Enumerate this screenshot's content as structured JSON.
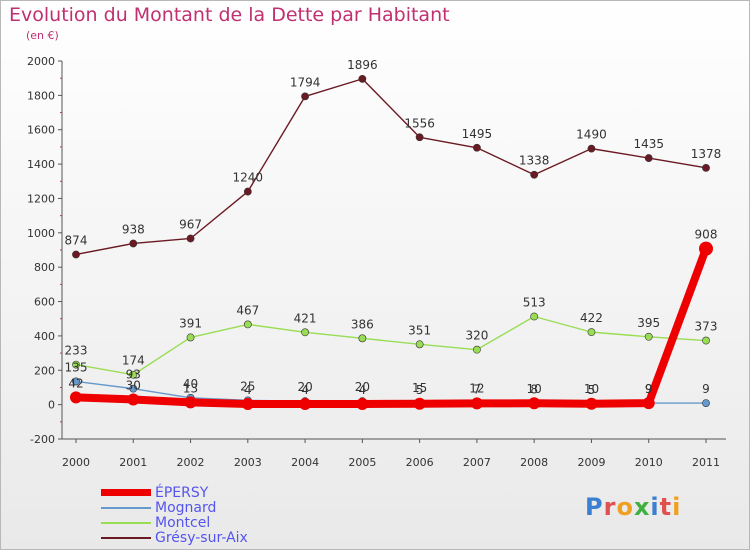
{
  "header": {
    "title": "Evolution du Montant de la Dette par Habitant",
    "subtitle": "(en €)"
  },
  "logo": {
    "text": "Proxiti",
    "colors": [
      "#3a7fd0",
      "#e05050",
      "#f0a020",
      "#40b040",
      "#3a7fd0",
      "#e05050",
      "#f0a020"
    ]
  },
  "chart_data": {
    "type": "line",
    "title": "Evolution du Montant de la Dette par Habitant",
    "ylabel": "(en €)",
    "xlabel": "",
    "x": [
      "2000",
      "2001",
      "2002",
      "2003",
      "2004",
      "2005",
      "2006",
      "2007",
      "2008",
      "2009",
      "2010",
      "2011"
    ],
    "ylim": [
      -200,
      2000
    ],
    "yticks": [
      -200,
      0,
      200,
      400,
      600,
      800,
      1000,
      1200,
      1400,
      1600,
      1800,
      2000
    ],
    "grid": false,
    "legend_position": "bottom-left",
    "series": [
      {
        "name": "Grésy-sur-Aix",
        "color": "#6b1a24",
        "values": [
          874,
          938,
          967,
          1240,
          1794,
          1896,
          1556,
          1495,
          1338,
          1490,
          1435,
          1378
        ]
      },
      {
        "name": "Montcel",
        "color": "#99dd55",
        "values": [
          233,
          174,
          391,
          467,
          421,
          386,
          351,
          320,
          513,
          422,
          395,
          373
        ]
      },
      {
        "name": "Mognard",
        "color": "#6699cc",
        "values": [
          135,
          93,
          40,
          25,
          20,
          20,
          15,
          12,
          10,
          10,
          9,
          9
        ]
      },
      {
        "name": "ÉPERSY",
        "color": "#ee0000",
        "values": [
          42,
          30,
          13,
          4,
          4,
          4,
          5,
          7,
          8,
          5,
          9,
          908
        ]
      }
    ],
    "data_labels": {
      "Grésy-sur-Aix": [
        "874",
        "938",
        "967",
        "1240",
        "1794",
        "1896",
        "1556",
        "1495",
        "1338",
        "1490",
        "1435",
        "1378"
      ],
      "Montcel": [
        "233",
        "174",
        "391",
        "467",
        "421",
        "386",
        "351",
        "320",
        "513",
        "422",
        "395",
        "373"
      ],
      "Mognard": [
        "135",
        "93",
        "40",
        "25",
        "20",
        "20",
        "15",
        "12",
        "10",
        "10",
        "9",
        "9"
      ],
      "ÉPERSY": [
        "42",
        "30",
        "13",
        "4",
        "4",
        "4",
        "5",
        "7",
        "8",
        "5",
        "9",
        "908"
      ]
    }
  },
  "legend": [
    {
      "name": "ÉPERSY",
      "color": "#ee0000",
      "weight": "thick"
    },
    {
      "name": "Mognard",
      "color": "#6699cc",
      "weight": "thin"
    },
    {
      "name": "Montcel",
      "color": "#99dd55",
      "weight": "thin"
    },
    {
      "name": "Grésy-sur-Aix",
      "color": "#6b1a24",
      "weight": "thin"
    }
  ]
}
